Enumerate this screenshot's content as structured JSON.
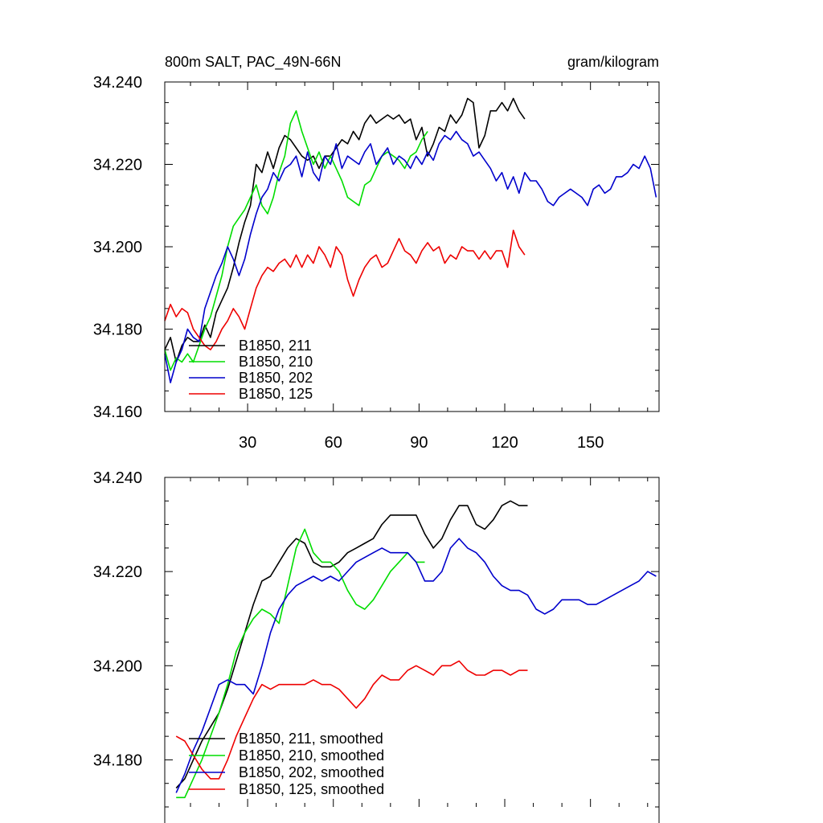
{
  "colors": {
    "black": "#000000",
    "green": "#00dd00",
    "blue": "#0000cc",
    "red": "#ee0000"
  },
  "chart_data": [
    {
      "type": "line",
      "title": "800m SALT, PAC_49N-66N",
      "units": "gram/kilogram",
      "xlim": [
        1,
        174
      ],
      "ylim": [
        34.16,
        34.24
      ],
      "xticks": [
        30,
        60,
        90,
        120,
        150
      ],
      "xtick_labels": [
        "30",
        "60",
        "90",
        "120",
        "150"
      ],
      "yticks": [
        34.16,
        34.18,
        34.2,
        34.22,
        34.24
      ],
      "ytick_labels": [
        "34.160",
        "34.180",
        "34.200",
        "34.220",
        "34.240"
      ],
      "legend": "bottom-left",
      "series": [
        {
          "name": "B1850, 211",
          "color": "#000000",
          "x": [
            1,
            3,
            5,
            7,
            9,
            11,
            13,
            15,
            17,
            19,
            21,
            23,
            25,
            27,
            29,
            31,
            33,
            35,
            37,
            39,
            41,
            43,
            45,
            47,
            49,
            51,
            53,
            55,
            57,
            59,
            61,
            63,
            65,
            67,
            69,
            71,
            73,
            75,
            77,
            79,
            81,
            83,
            85,
            87,
            89,
            91,
            93,
            95,
            97,
            99,
            101,
            103,
            105,
            107,
            109,
            111,
            113,
            115,
            117,
            119,
            121,
            123,
            125,
            127
          ],
          "y": [
            34.175,
            34.178,
            34.172,
            34.176,
            34.178,
            34.177,
            34.177,
            34.181,
            34.178,
            34.184,
            34.187,
            34.19,
            34.195,
            34.201,
            34.206,
            34.21,
            34.22,
            34.218,
            34.223,
            34.219,
            34.224,
            34.227,
            34.226,
            34.224,
            34.222,
            34.221,
            34.222,
            34.219,
            34.222,
            34.222,
            34.224,
            34.226,
            34.225,
            34.228,
            34.226,
            34.23,
            34.232,
            34.23,
            34.231,
            34.232,
            34.231,
            34.232,
            34.23,
            34.231,
            34.226,
            34.229,
            34.222,
            34.225,
            34.229,
            34.228,
            34.232,
            34.23,
            34.232,
            34.236,
            34.235,
            34.224,
            34.227,
            34.233,
            34.233,
            34.235,
            34.233,
            34.236,
            34.233,
            34.231
          ]
        },
        {
          "name": "B1850, 210",
          "color": "#00dd00",
          "x": [
            1,
            3,
            5,
            7,
            9,
            11,
            13,
            15,
            17,
            19,
            21,
            23,
            25,
            27,
            29,
            31,
            33,
            35,
            37,
            39,
            41,
            43,
            45,
            47,
            49,
            51,
            53,
            55,
            57,
            59,
            61,
            63,
            65,
            67,
            69,
            71,
            73,
            75,
            77,
            79,
            81,
            83,
            85,
            87,
            89,
            91,
            93
          ],
          "y": [
            34.175,
            34.17,
            34.173,
            34.172,
            34.174,
            34.172,
            34.176,
            34.18,
            34.183,
            34.188,
            34.193,
            34.2,
            34.205,
            34.207,
            34.209,
            34.212,
            34.215,
            34.21,
            34.208,
            34.212,
            34.218,
            34.222,
            34.23,
            34.233,
            34.228,
            34.224,
            34.22,
            34.223,
            34.219,
            34.222,
            34.219,
            34.216,
            34.212,
            34.211,
            34.21,
            34.215,
            34.216,
            34.219,
            34.222,
            34.223,
            34.222,
            34.221,
            34.219,
            34.222,
            34.223,
            34.226,
            34.228
          ]
        },
        {
          "name": "B1850, 202",
          "color": "#0000cc",
          "x": [
            1,
            3,
            5,
            7,
            9,
            11,
            13,
            15,
            17,
            19,
            21,
            23,
            25,
            27,
            29,
            31,
            33,
            35,
            37,
            39,
            41,
            43,
            45,
            47,
            49,
            51,
            53,
            55,
            57,
            59,
            61,
            63,
            65,
            67,
            69,
            71,
            73,
            75,
            77,
            79,
            81,
            83,
            85,
            87,
            89,
            91,
            93,
            95,
            97,
            99,
            101,
            103,
            105,
            107,
            109,
            111,
            113,
            115,
            117,
            119,
            121,
            123,
            125,
            127,
            129,
            131,
            133,
            135,
            137,
            139,
            141,
            143,
            145,
            147,
            149,
            151,
            153,
            155,
            157,
            159,
            161,
            163,
            165,
            167,
            169,
            171,
            173
          ],
          "y": [
            34.174,
            34.167,
            34.172,
            34.175,
            34.18,
            34.178,
            34.177,
            34.185,
            34.189,
            34.193,
            34.196,
            34.2,
            34.197,
            34.193,
            34.197,
            34.203,
            34.208,
            34.212,
            34.214,
            34.218,
            34.216,
            34.219,
            34.22,
            34.222,
            34.217,
            34.223,
            34.218,
            34.216,
            34.222,
            34.22,
            34.225,
            34.219,
            34.222,
            34.221,
            34.22,
            34.223,
            34.225,
            34.22,
            34.222,
            34.224,
            34.22,
            34.222,
            34.221,
            34.219,
            34.222,
            34.22,
            34.223,
            34.221,
            34.225,
            34.227,
            34.226,
            34.228,
            34.226,
            34.225,
            34.222,
            34.223,
            34.221,
            34.219,
            34.216,
            34.218,
            34.214,
            34.217,
            34.213,
            34.218,
            34.216,
            34.216,
            34.214,
            34.211,
            34.21,
            34.212,
            34.213,
            34.214,
            34.213,
            34.212,
            34.21,
            34.214,
            34.215,
            34.213,
            34.214,
            34.217,
            34.217,
            34.218,
            34.22,
            34.219,
            34.222,
            34.219,
            34.212
          ]
        },
        {
          "name": "B1850, 125",
          "color": "#ee0000",
          "x": [
            1,
            3,
            5,
            7,
            9,
            11,
            13,
            15,
            17,
            19,
            21,
            23,
            25,
            27,
            29,
            31,
            33,
            35,
            37,
            39,
            41,
            43,
            45,
            47,
            49,
            51,
            53,
            55,
            57,
            59,
            61,
            63,
            65,
            67,
            69,
            71,
            73,
            75,
            77,
            79,
            81,
            83,
            85,
            87,
            89,
            91,
            93,
            95,
            97,
            99,
            101,
            103,
            105,
            107,
            109,
            111,
            113,
            115,
            117,
            119,
            121,
            123,
            125,
            127
          ],
          "y": [
            34.182,
            34.186,
            34.183,
            34.185,
            34.184,
            34.18,
            34.178,
            34.176,
            34.175,
            34.177,
            34.18,
            34.182,
            34.185,
            34.183,
            34.18,
            34.185,
            34.19,
            34.193,
            34.195,
            34.194,
            34.196,
            34.197,
            34.195,
            34.198,
            34.195,
            34.198,
            34.196,
            34.2,
            34.198,
            34.195,
            34.2,
            34.198,
            34.192,
            34.188,
            34.192,
            34.195,
            34.197,
            34.198,
            34.195,
            34.196,
            34.199,
            34.202,
            34.199,
            34.198,
            34.196,
            34.199,
            34.201,
            34.199,
            34.2,
            34.196,
            34.198,
            34.197,
            34.2,
            34.199,
            34.199,
            34.197,
            34.199,
            34.197,
            34.199,
            34.199,
            34.195,
            34.204,
            34.2,
            34.198
          ]
        }
      ]
    },
    {
      "type": "line",
      "title": "",
      "xlim": [
        1,
        174
      ],
      "ylim": [
        34.17,
        34.24
      ],
      "yticks": [
        34.18,
        34.2,
        34.22,
        34.24
      ],
      "ytick_labels": [
        "34.180",
        "34.200",
        "34.220",
        "34.240"
      ],
      "legend": "bottom-left",
      "series": [
        {
          "name": "B1850, 211, smoothed",
          "color": "#000000",
          "x": [
            5,
            8,
            11,
            14,
            17,
            20,
            23,
            26,
            29,
            32,
            35,
            38,
            41,
            44,
            47,
            50,
            53,
            56,
            59,
            62,
            65,
            68,
            71,
            74,
            77,
            80,
            83,
            86,
            89,
            92,
            95,
            98,
            101,
            104,
            107,
            110,
            113,
            116,
            119,
            122,
            125,
            128
          ],
          "y": [
            34.174,
            34.176,
            34.18,
            34.184,
            34.187,
            34.19,
            34.195,
            34.201,
            34.207,
            34.213,
            34.218,
            34.219,
            34.222,
            34.225,
            34.227,
            34.226,
            34.222,
            34.221,
            34.221,
            34.222,
            34.224,
            34.225,
            34.226,
            34.227,
            34.23,
            34.232,
            34.232,
            34.232,
            34.232,
            34.228,
            34.225,
            34.227,
            34.231,
            34.234,
            34.234,
            34.23,
            34.229,
            34.231,
            34.234,
            34.235,
            34.234,
            34.234
          ]
        },
        {
          "name": "B1850, 210, smoothed",
          "color": "#00dd00",
          "x": [
            5,
            8,
            11,
            14,
            17,
            20,
            23,
            26,
            29,
            32,
            35,
            38,
            41,
            44,
            47,
            50,
            53,
            56,
            59,
            62,
            65,
            68,
            71,
            74,
            77,
            80,
            83,
            86,
            89,
            92
          ],
          "y": [
            34.172,
            34.172,
            34.176,
            34.18,
            34.185,
            34.19,
            34.196,
            34.203,
            34.207,
            34.21,
            34.212,
            34.211,
            34.209,
            34.217,
            34.225,
            34.229,
            34.224,
            34.222,
            34.222,
            34.22,
            34.216,
            34.213,
            34.212,
            34.214,
            34.217,
            34.22,
            34.222,
            34.224,
            34.222,
            34.222
          ]
        },
        {
          "name": "B1850, 202, smoothed",
          "color": "#0000cc",
          "x": [
            5,
            8,
            11,
            14,
            17,
            20,
            23,
            26,
            29,
            32,
            35,
            38,
            41,
            44,
            47,
            50,
            53,
            56,
            59,
            62,
            65,
            68,
            71,
            74,
            77,
            80,
            83,
            86,
            89,
            92,
            95,
            98,
            101,
            104,
            107,
            110,
            113,
            116,
            119,
            122,
            125,
            128,
            131,
            134,
            137,
            140,
            143,
            146,
            149,
            152,
            155,
            158,
            161,
            164,
            167,
            170,
            173
          ],
          "y": [
            34.173,
            34.177,
            34.182,
            34.186,
            34.191,
            34.196,
            34.197,
            34.196,
            34.196,
            34.194,
            34.2,
            34.207,
            34.212,
            34.215,
            34.217,
            34.218,
            34.219,
            34.218,
            34.219,
            34.218,
            34.22,
            34.222,
            34.223,
            34.224,
            34.225,
            34.224,
            34.224,
            34.224,
            34.222,
            34.218,
            34.218,
            34.22,
            34.225,
            34.227,
            34.225,
            34.224,
            34.222,
            34.219,
            34.217,
            34.216,
            34.216,
            34.215,
            34.212,
            34.211,
            34.212,
            34.214,
            34.214,
            34.214,
            34.213,
            34.213,
            34.214,
            34.215,
            34.216,
            34.217,
            34.218,
            34.22,
            34.219
          ]
        },
        {
          "name": "B1850, 125, smoothed",
          "color": "#ee0000",
          "x": [
            5,
            8,
            11,
            14,
            17,
            20,
            23,
            26,
            29,
            32,
            35,
            38,
            41,
            44,
            47,
            50,
            53,
            56,
            59,
            62,
            65,
            68,
            71,
            74,
            77,
            80,
            83,
            86,
            89,
            92,
            95,
            98,
            101,
            104,
            107,
            110,
            113,
            116,
            119,
            122,
            125,
            128
          ],
          "y": [
            34.185,
            34.184,
            34.181,
            34.178,
            34.176,
            34.176,
            34.18,
            34.185,
            34.189,
            34.193,
            34.196,
            34.195,
            34.196,
            34.196,
            34.196,
            34.196,
            34.197,
            34.196,
            34.196,
            34.195,
            34.193,
            34.191,
            34.193,
            34.196,
            34.198,
            34.197,
            34.197,
            34.199,
            34.2,
            34.199,
            34.198,
            34.2,
            34.2,
            34.201,
            34.199,
            34.198,
            34.198,
            34.199,
            34.199,
            34.198,
            34.199,
            34.199
          ]
        }
      ]
    }
  ]
}
